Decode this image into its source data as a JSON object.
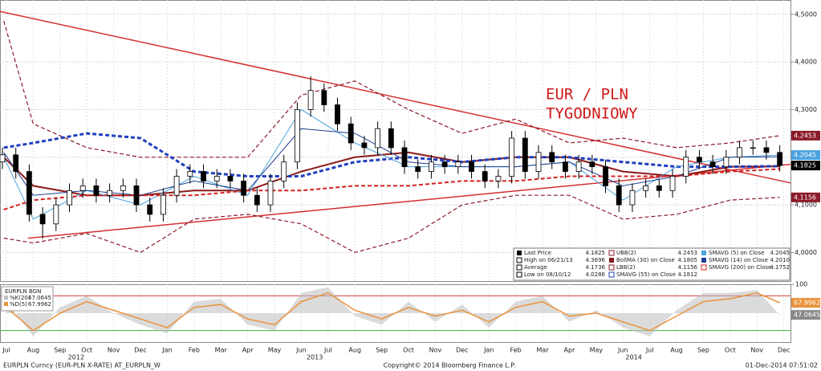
{
  "chart_data": {
    "type": "candlestick",
    "name": "Last Price",
    "annotation": [
      "EUR / PLN",
      "TYGODNIOWY"
    ],
    "x": [
      0.35,
      0.85,
      1.35,
      1.85,
      2.35,
      2.85,
      3.35,
      3.85,
      4.35,
      4.85,
      5.35,
      5.85,
      6.35,
      6.85,
      7.35,
      7.85,
      8.35,
      8.85,
      9.35,
      9.85,
      10.35,
      10.85,
      11.35,
      11.85,
      12.35,
      12.85,
      13.35,
      13.85,
      14.35,
      14.85,
      15.35,
      15.85,
      16.35,
      16.85,
      17.35,
      17.85,
      18.35,
      18.85,
      19.35,
      19.85,
      20.35,
      20.85,
      21.35,
      21.85,
      22.35,
      22.85,
      23.35,
      23.85,
      24.35,
      24.85,
      25.35,
      25.85,
      26.35,
      26.85,
      27.35,
      27.85,
      28.35,
      28.85,
      29.35
    ],
    "open": [
      4.19,
      4.205,
      4.17,
      4.08,
      4.06,
      4.1,
      4.13,
      4.14,
      4.12,
      4.13,
      4.14,
      4.1,
      4.08,
      4.12,
      4.16,
      4.17,
      4.15,
      4.16,
      4.15,
      4.12,
      4.1,
      4.15,
      4.19,
      4.3,
      4.34,
      4.31,
      4.27,
      4.23,
      4.22,
      4.26,
      4.22,
      4.18,
      4.17,
      4.19,
      4.18,
      4.19,
      4.17,
      4.15,
      4.16,
      4.24,
      4.17,
      4.21,
      4.19,
      4.17,
      4.19,
      4.18,
      4.14,
      4.1,
      4.13,
      4.14,
      4.13,
      4.16,
      4.2,
      4.19,
      4.18,
      4.2,
      4.22,
      4.22,
      4.21
    ],
    "high": [
      4.22,
      4.22,
      4.185,
      4.095,
      4.115,
      4.145,
      4.155,
      4.155,
      4.145,
      4.155,
      4.155,
      4.115,
      4.135,
      4.175,
      4.185,
      4.185,
      4.175,
      4.175,
      4.165,
      4.135,
      4.165,
      4.205,
      4.315,
      4.3696,
      4.355,
      4.325,
      4.285,
      4.245,
      4.275,
      4.275,
      4.235,
      4.195,
      4.205,
      4.205,
      4.205,
      4.205,
      4.185,
      4.175,
      4.255,
      4.255,
      4.225,
      4.225,
      4.205,
      4.205,
      4.205,
      4.195,
      4.155,
      4.145,
      4.155,
      4.155,
      4.175,
      4.215,
      4.215,
      4.205,
      4.215,
      4.235,
      4.235,
      4.235,
      4.225
    ],
    "low": [
      4.175,
      4.155,
      4.065,
      4.0286,
      4.045,
      4.085,
      4.115,
      4.105,
      4.105,
      4.115,
      4.085,
      4.065,
      4.065,
      4.105,
      4.145,
      4.135,
      4.135,
      4.135,
      4.105,
      4.085,
      4.085,
      4.135,
      4.175,
      4.285,
      4.295,
      4.255,
      4.215,
      4.205,
      4.205,
      4.205,
      4.165,
      4.155,
      4.155,
      4.165,
      4.165,
      4.155,
      4.135,
      4.135,
      4.145,
      4.155,
      4.155,
      4.175,
      4.155,
      4.155,
      4.165,
      4.125,
      4.085,
      4.085,
      4.115,
      4.115,
      4.115,
      4.145,
      4.175,
      4.165,
      4.165,
      4.185,
      4.205,
      4.195,
      4.17
    ],
    "close": [
      4.205,
      4.17,
      4.08,
      4.06,
      4.1,
      4.13,
      4.14,
      4.12,
      4.13,
      4.14,
      4.1,
      4.08,
      4.12,
      4.16,
      4.17,
      4.15,
      4.16,
      4.15,
      4.12,
      4.1,
      4.15,
      4.19,
      4.3,
      4.34,
      4.31,
      4.27,
      4.23,
      4.22,
      4.26,
      4.22,
      4.18,
      4.17,
      4.19,
      4.18,
      4.19,
      4.17,
      4.15,
      4.16,
      4.24,
      4.17,
      4.21,
      4.19,
      4.17,
      4.19,
      4.18,
      4.14,
      4.1,
      4.13,
      4.14,
      4.13,
      4.16,
      4.2,
      4.19,
      4.18,
      4.2,
      4.22,
      4.22,
      4.21,
      4.1825
    ],
    "stats": [
      {
        "label": "High on 06/21/13",
        "value": 4.3696
      },
      {
        "label": "Average",
        "value": 4.1736
      },
      {
        "label": "Low on 08/10/12",
        "value": 4.0286
      }
    ],
    "xlim": [
      0.26,
      29.75
    ],
    "ylim": [
      3.94,
      4.53
    ],
    "yticks": [
      {
        "value": 4.0,
        "label": "4,0000"
      },
      {
        "value": 4.1,
        "label": "4,1000"
      },
      {
        "value": 4.2,
        "label": "4,2000"
      },
      {
        "value": 4.3,
        "label": "4,3000"
      },
      {
        "value": 4.4,
        "label": "4,4000"
      },
      {
        "value": 4.5,
        "label": "4,5000"
      }
    ],
    "xticks": [
      {
        "value": 0.5,
        "label": "Jul"
      },
      {
        "value": 1.5,
        "label": "Aug"
      },
      {
        "value": 2.5,
        "label": "Sep"
      },
      {
        "value": 3.5,
        "label": "Oct"
      },
      {
        "value": 4.5,
        "label": "Nov"
      },
      {
        "value": 5.5,
        "label": "Dec"
      },
      {
        "value": 6.5,
        "label": "Jan"
      },
      {
        "value": 7.5,
        "label": "Feb"
      },
      {
        "value": 8.5,
        "label": "Mar"
      },
      {
        "value": 9.5,
        "label": "Apr"
      },
      {
        "value": 10.5,
        "label": "May"
      },
      {
        "value": 11.5,
        "label": "Jun"
      },
      {
        "value": 12.5,
        "label": "Jul"
      },
      {
        "value": 13.5,
        "label": "Aug"
      },
      {
        "value": 14.5,
        "label": "Sep"
      },
      {
        "value": 15.5,
        "label": "Oct"
      },
      {
        "value": 16.5,
        "label": "Nov"
      },
      {
        "value": 17.5,
        "label": "Dec"
      },
      {
        "value": 18.5,
        "label": "Jan"
      },
      {
        "value": 19.5,
        "label": "Feb"
      },
      {
        "value": 20.5,
        "label": "Mar"
      },
      {
        "value": 21.5,
        "label": "Apr"
      },
      {
        "value": 22.5,
        "label": "May"
      },
      {
        "value": 23.5,
        "label": "Jun"
      },
      {
        "value": 24.5,
        "label": "Jul"
      },
      {
        "value": 25.5,
        "label": "Aug"
      },
      {
        "value": 26.5,
        "label": "Sep"
      },
      {
        "value": 27.5,
        "label": "Oct"
      },
      {
        "value": 28.5,
        "label": "Nov"
      },
      {
        "value": 29.5,
        "label": "Dec"
      }
    ],
    "years": [
      {
        "value": 3.1,
        "label": "2012"
      },
      {
        "value": 12.0,
        "label": "2013"
      },
      {
        "value": 23.9,
        "label": "2014"
      }
    ],
    "grid": true,
    "series": [
      {
        "name": "UBB(2)",
        "color": "#8b1a2a",
        "dash": true,
        "width": 1.2,
        "tag": true,
        "x": [
          0.4,
          1.5,
          3.5,
          5.5,
          7.5,
          9.5,
          11.5,
          13.5,
          15.5,
          17.5,
          19.5,
          21.5,
          23.5,
          25.5,
          27.5,
          29.35
        ],
        "values": [
          4.486,
          4.27,
          4.22,
          4.2,
          4.2,
          4.2,
          4.33,
          4.36,
          4.3,
          4.25,
          4.28,
          4.23,
          4.24,
          4.22,
          4.23,
          4.2453
        ]
      },
      {
        "name": "BollMA (30) on Close",
        "color": "#8b1a1a",
        "dash": false,
        "width": 2,
        "tag": false,
        "x": [
          0.4,
          1.5,
          3.5,
          5.5,
          7.5,
          9.5,
          11.5,
          13.5,
          15.5,
          17.5,
          19.5,
          21.5,
          23.5,
          25.5,
          27.5,
          29.35
        ],
        "values": [
          4.2,
          4.14,
          4.12,
          4.12,
          4.13,
          4.13,
          4.17,
          4.2,
          4.21,
          4.19,
          4.2,
          4.2,
          4.17,
          4.16,
          4.18,
          4.1805
        ]
      },
      {
        "name": "LBB(2)",
        "color": "#8b1a2a",
        "dash": true,
        "width": 1.2,
        "tag": true,
        "x": [
          0.4,
          1.5,
          3.5,
          5.5,
          7.5,
          9.5,
          11.5,
          13.5,
          15.5,
          17.5,
          19.5,
          21.5,
          23.5,
          25.5,
          27.5,
          29.35
        ],
        "values": [
          4.03,
          4.02,
          4.04,
          4.0,
          4.07,
          4.08,
          4.06,
          4.0,
          4.03,
          4.1,
          4.12,
          4.12,
          4.07,
          4.08,
          4.11,
          4.1156
        ]
      },
      {
        "name": "SMAVG (55) on Close",
        "color": "#1f3fbf",
        "dash": true,
        "width": 3,
        "tag": false,
        "x": [
          0.4,
          1.5,
          3.5,
          5.5,
          7.5,
          9.5,
          11.5,
          13.5,
          15.5,
          17.5,
          19.5,
          21.5,
          23.5,
          25.5,
          27.5,
          29.35
        ],
        "values": [
          4.22,
          4.23,
          4.25,
          4.24,
          4.17,
          4.16,
          4.16,
          4.19,
          4.2,
          4.19,
          4.2,
          4.2,
          4.19,
          4.18,
          4.18,
          4.1812
        ]
      },
      {
        "name": "SMAVG (5) on Close",
        "color": "#4aa3df",
        "dash": false,
        "width": 1,
        "tag": true,
        "x": [
          0.4,
          1.5,
          3.5,
          5.5,
          7.5,
          9.5,
          11.5,
          13.5,
          15.5,
          17.5,
          19.5,
          21.5,
          23.5,
          25.5,
          27.5,
          29.35
        ],
        "values": [
          4.2,
          4.07,
          4.13,
          4.1,
          4.16,
          4.12,
          4.3,
          4.23,
          4.18,
          4.18,
          4.18,
          4.19,
          4.11,
          4.18,
          4.2,
          4.2045
        ]
      },
      {
        "name": "SMAVG (14) on Close",
        "color": "#1f3f8f",
        "dash": false,
        "width": 1,
        "tag": false,
        "value_label": "4.2010",
        "x": [
          0.4,
          1.5,
          3.5,
          5.5,
          7.5,
          9.5,
          11.5,
          13.5,
          15.5,
          17.5,
          19.5,
          21.5,
          23.5,
          25.5,
          27.5,
          29.35
        ],
        "values": [
          4.21,
          4.12,
          4.13,
          4.12,
          4.15,
          4.13,
          4.26,
          4.25,
          4.19,
          4.18,
          4.18,
          4.19,
          4.14,
          4.16,
          4.2,
          4.201
        ]
      },
      {
        "name": "SMAVG (200) on Close",
        "color": "#d42020",
        "dash": true,
        "width": 2,
        "tag": false,
        "x": [
          0.4,
          1.5,
          3.5,
          5.5,
          7.5,
          9.5,
          11.5,
          13.5,
          15.5,
          17.5,
          19.5,
          21.5,
          23.5,
          25.5,
          27.5,
          29.35
        ],
        "values": [
          4.09,
          4.11,
          4.12,
          4.12,
          4.12,
          4.13,
          4.13,
          4.14,
          4.14,
          4.15,
          4.15,
          4.16,
          4.16,
          4.16,
          4.17,
          4.1752
        ]
      }
    ],
    "trendlines": [
      {
        "color": "#d43030",
        "x": [
          0.26,
          29.75
        ],
        "values": [
          4.506,
          4.146
        ]
      },
      {
        "color": "#d43030",
        "x": [
          1.3,
          29.75
        ],
        "values": [
          4.03,
          4.185
        ]
      }
    ],
    "oscillator": {
      "title": "EURPLN BGN",
      "ylim": [
        0,
        100
      ],
      "yticks": [
        50,
        100
      ],
      "levels": [
        {
          "value": 80,
          "color": "#d04040"
        },
        {
          "value": 20,
          "color": "#40b040"
        }
      ],
      "x": [
        0.5,
        1.5,
        2.5,
        3.5,
        4.5,
        5.5,
        6.5,
        7.5,
        8.5,
        9.5,
        10.5,
        11.5,
        12.5,
        13.5,
        14.5,
        15.5,
        16.5,
        17.5,
        18.5,
        19.5,
        20.5,
        21.5,
        22.5,
        23.5,
        24.5,
        25.5,
        26.5,
        27.5,
        28.5,
        29.35
      ],
      "series": [
        {
          "name": "%K(20)",
          "color": "#bdbdbd",
          "values": [
            70,
            10,
            60,
            80,
            50,
            30,
            15,
            70,
            75,
            30,
            20,
            85,
            95,
            45,
            30,
            70,
            35,
            65,
            25,
            70,
            80,
            35,
            55,
            25,
            10,
            55,
            85,
            85,
            90,
            47.0645
          ]
        },
        {
          "name": "%D(5)",
          "color": "#e8923a",
          "values": [
            60,
            20,
            50,
            70,
            55,
            40,
            25,
            60,
            65,
            40,
            30,
            70,
            85,
            55,
            40,
            60,
            45,
            55,
            35,
            60,
            70,
            45,
            50,
            35,
            20,
            45,
            70,
            75,
            85,
            67.9962
          ]
        }
      ]
    },
    "footer": {
      "left": "EURPLN Curncy (EUR-PLN X-RATE) AT_EURPLN_W",
      "center": "Copyright© 2014 Bloomberg Finance L.P.",
      "right": "01-Dec-2014 07:51:02"
    }
  }
}
